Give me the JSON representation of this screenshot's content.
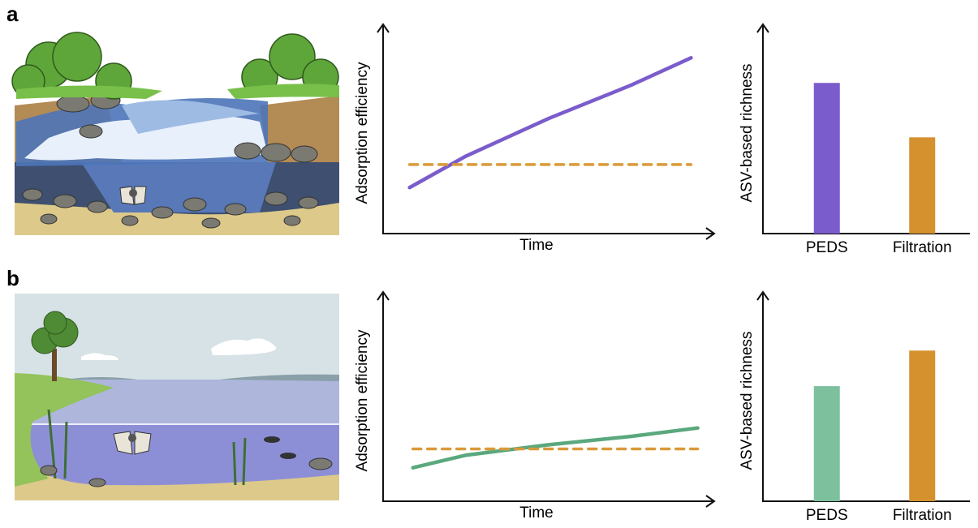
{
  "panel_labels": [
    "a",
    "b"
  ],
  "chart_data": [
    {
      "type": "line",
      "x_label": "Time",
      "y_label": "Adsorption efficiency",
      "xlim": [
        0,
        100
      ],
      "ylim": [
        0,
        100
      ],
      "series": [
        {
          "color": "#7b5ccc",
          "style": "solid",
          "x": [
            8,
            25,
            50,
            75,
            93
          ],
          "values": [
            22,
            37,
            55,
            71,
            84
          ]
        },
        {
          "color": "#d99a3a",
          "style": "dashed",
          "x": [
            8,
            93
          ],
          "values": [
            33,
            33
          ]
        }
      ]
    },
    {
      "type": "bar",
      "y_label": "ASV-based richness",
      "ylim": [
        0,
        100
      ],
      "categories": [
        "PEDS",
        "Filtration"
      ],
      "values": [
        72,
        46
      ],
      "colors": [
        "#7b5ccc",
        "#d4912e"
      ]
    },
    {
      "type": "line",
      "x_label": "Time",
      "y_label": "Adsorption efficiency",
      "xlim": [
        0,
        100
      ],
      "ylim": [
        0,
        100
      ],
      "series": [
        {
          "color": "#5aa87e",
          "style": "solid",
          "x": [
            9,
            25,
            50,
            75,
            95
          ],
          "values": [
            16,
            22,
            27,
            31,
            35
          ]
        },
        {
          "color": "#d99a3a",
          "style": "dashed",
          "x": [
            9,
            95
          ],
          "values": [
            25,
            25
          ]
        }
      ]
    },
    {
      "type": "bar",
      "y_label": "ASV-based richness",
      "ylim": [
        0,
        100
      ],
      "categories": [
        "PEDS",
        "Filtration"
      ],
      "values": [
        55,
        72
      ],
      "colors": [
        "#7cc09e",
        "#d4912e"
      ]
    }
  ]
}
